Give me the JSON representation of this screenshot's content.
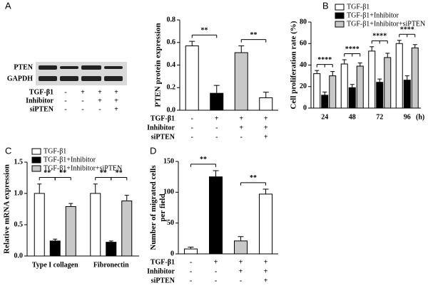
{
  "blot": {
    "bands": [
      "PTEN",
      "GAPDH"
    ],
    "treatments": [
      {
        "name": "TGF-β1",
        "signs": [
          "-",
          "+",
          "+",
          "+"
        ]
      },
      {
        "name": "Inhibitor",
        "signs": [
          "-",
          "-",
          "+",
          "+"
        ]
      },
      {
        "name": "siPTEN",
        "signs": [
          "-",
          "-",
          "-",
          "+"
        ]
      }
    ]
  },
  "chart_data": [
    {
      "type": "bar",
      "label": "A",
      "ylabel": [
        "PTEN protein expression"
      ],
      "values": [
        0.57,
        0.15,
        0.51,
        0.11
      ],
      "errors": [
        0.04,
        0.07,
        0.06,
        0.05
      ],
      "colors": [
        "#ffffff",
        "#000000",
        "#c8c8c8",
        "#ffffff"
      ],
      "ylim": [
        0,
        0.8
      ],
      "yticks": [
        {
          "value": 0,
          "label": "0.0"
        },
        0.2,
        0.4,
        0.6,
        0.8
      ],
      "annotations": [
        "**",
        "**"
      ],
      "treatments": [
        {
          "name": "TGF-β1",
          "signs": [
            "-",
            "+",
            "+",
            "+"
          ]
        },
        {
          "name": "Inhibitor",
          "signs": [
            "-",
            "-",
            "+",
            "+"
          ]
        },
        {
          "name": "siPTEN",
          "signs": [
            "-",
            "-",
            "-",
            "+"
          ]
        }
      ]
    },
    {
      "type": "grouped-bar",
      "label": "B",
      "ylabel": [
        "Cell proliferation rate (%)"
      ],
      "xlabel": "(h)",
      "categories": [
        "24",
        "48",
        "72",
        "96"
      ],
      "legend": "upper right",
      "series": [
        {
          "name": "TGF-β1",
          "color": "#ffffff",
          "values": [
            32,
            41,
            53,
            60
          ],
          "errors": [
            3,
            4,
            4,
            3
          ]
        },
        {
          "name": "TGF-β1+Inhibitor",
          "color": "#000000",
          "values": [
            12,
            19,
            24,
            26
          ],
          "errors": [
            3,
            3,
            3,
            4
          ]
        },
        {
          "name": "TGF-β1+Inhibitor+siPTEN",
          "color": "#c8c8c8",
          "values": [
            30,
            39,
            47,
            56
          ],
          "errors": [
            4,
            3,
            4,
            3
          ]
        }
      ],
      "ylim": [
        0,
        80
      ],
      "yticks": [
        0,
        20,
        40,
        60,
        80
      ],
      "annotations": [
        "****",
        "****",
        "****",
        "****"
      ]
    },
    {
      "type": "grouped-bar",
      "label": "C",
      "ylabel": [
        "Relative mRNA expression"
      ],
      "categories": [
        "Type I collagen",
        "Fibronectin"
      ],
      "legend": "upper left",
      "series": [
        {
          "name": "TGF-β1",
          "color": "#ffffff",
          "values": [
            1.0,
            1.0
          ],
          "errors": [
            0.15,
            0.15
          ]
        },
        {
          "name": "TGF-β1+Inhibitor",
          "color": "#000000",
          "values": [
            0.24,
            0.22
          ],
          "errors": [
            0.03,
            0.02
          ]
        },
        {
          "name": "TGF-β1+Inhibitor+siPTEN",
          "color": "#c8c8c8",
          "values": [
            0.79,
            0.88
          ],
          "errors": [
            0.05,
            0.09
          ]
        }
      ],
      "ylim": [
        0,
        1.5
      ],
      "yticks": [
        {
          "value": 0,
          "label": "0.0"
        },
        0.5,
        {
          "value": 1,
          "label": "1.0"
        },
        1.5
      ],
      "annotations": [
        "**",
        "**",
        "**",
        "**"
      ]
    },
    {
      "type": "bar",
      "label": "D",
      "ylabel": [
        "Number of migrated cells",
        "per field"
      ],
      "values": [
        8,
        125,
        21,
        97
      ],
      "errors": [
        3,
        10,
        7,
        8
      ],
      "colors": [
        "#ffffff",
        "#000000",
        "#c8c8c8",
        "#ffffff"
      ],
      "ylim": [
        0,
        150
      ],
      "yticks": [
        0,
        50,
        100,
        150
      ],
      "annotations": [
        "**",
        "**"
      ],
      "treatments": [
        {
          "name": "TGF-β1",
          "signs": [
            "-",
            "+",
            "+",
            "+"
          ]
        },
        {
          "name": "Inhibitor",
          "signs": [
            "-",
            "-",
            "+",
            "+"
          ]
        },
        {
          "name": "siPTEN",
          "signs": [
            "-",
            "-",
            "-",
            "+"
          ]
        }
      ]
    }
  ]
}
